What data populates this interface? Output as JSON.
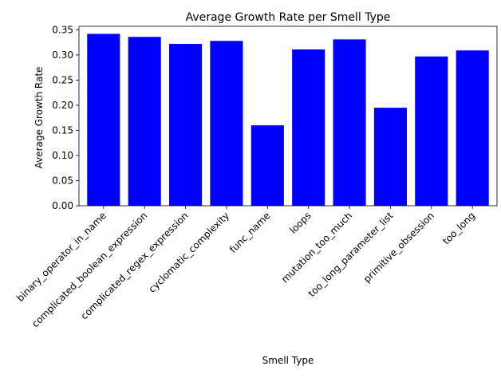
{
  "chart_data": {
    "type": "bar",
    "title": "Average Growth Rate per Smell Type",
    "xlabel": "Smell Type",
    "ylabel": "Average Growth Rate",
    "categories": [
      "binary_operator_in_name",
      "complicated_boolean_expression",
      "complicated_regex_expression",
      "cyclomatic_complexity",
      "func_name",
      "loops",
      "mutation_too_much",
      "too_long_parameter_list",
      "primitive_obsession",
      "too_long"
    ],
    "values": [
      0.342,
      0.336,
      0.322,
      0.328,
      0.16,
      0.311,
      0.331,
      0.195,
      0.297,
      0.309
    ],
    "ylim": [
      0,
      0.357
    ],
    "yticks": [
      0.0,
      0.05,
      0.1,
      0.15,
      0.2,
      0.25,
      0.3,
      0.35
    ],
    "ytick_labels": [
      "0.00",
      "0.05",
      "0.10",
      "0.15",
      "0.20",
      "0.25",
      "0.30",
      "0.35"
    ],
    "bar_color": "#0000ff",
    "grid": false,
    "legend": false
  }
}
